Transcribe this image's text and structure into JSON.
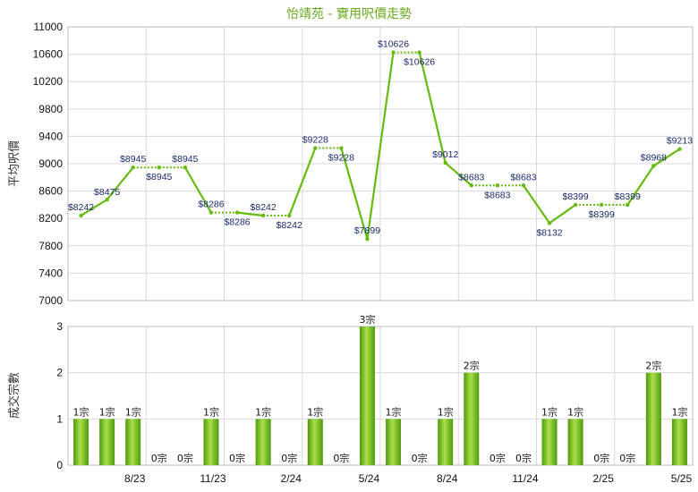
{
  "chart_data": [
    {
      "type": "line",
      "title": "怡靖苑 - 實用呎價走勢",
      "ylabel": "平均呎價",
      "ylim": [
        7000,
        11000
      ],
      "yticks": [
        7000,
        7400,
        7800,
        8200,
        8600,
        9000,
        9400,
        9800,
        10200,
        10600,
        11000
      ],
      "grid": true,
      "line_color": "#66bb11",
      "series": [
        {
          "values": [
            8242,
            8475,
            8945,
            8945,
            8945,
            8286,
            8286,
            8242,
            8242,
            9228,
            9228,
            7899,
            10626,
            10626,
            9012,
            8683,
            8683,
            8683,
            8132,
            8399,
            8399,
            8399,
            8968,
            9213
          ],
          "labels": [
            "$8242",
            "$8475",
            "$8945",
            "$8945",
            "$8945",
            "$8286",
            "$8286",
            "$8242",
            "$8242",
            "$9228",
            "$9228",
            "$7899",
            "$10626",
            "$10626",
            "$9012",
            "$8683",
            "$8683",
            "$8683",
            "$8132",
            "$8399",
            "$8399",
            "$8399",
            "$8968",
            "$9213"
          ],
          "dotted_segments": [
            2,
            3,
            5,
            7,
            9,
            12,
            15,
            16,
            19,
            20
          ]
        }
      ]
    },
    {
      "type": "bar",
      "ylabel": "成交宗數",
      "ylim": [
        0,
        3
      ],
      "yticks": [
        0,
        1,
        2,
        3
      ],
      "grid": true,
      "bar_color": "#7cc21f",
      "values": [
        1,
        1,
        1,
        0,
        0,
        1,
        0,
        1,
        0,
        1,
        0,
        3,
        1,
        0,
        1,
        2,
        0,
        0,
        1,
        1,
        0,
        0,
        2,
        1
      ],
      "labels": [
        "1宗",
        "1宗",
        "1宗",
        "0宗",
        "0宗",
        "1宗",
        "0宗",
        "1宗",
        "0宗",
        "1宗",
        "0宗",
        "3宗",
        "1宗",
        "0宗",
        "1宗",
        "2宗",
        "0宗",
        "0宗",
        "1宗",
        "1宗",
        "0宗",
        "0宗",
        "2宗",
        "1宗"
      ],
      "x_ticks": [
        {
          "index": 2,
          "label": "8/23"
        },
        {
          "index": 5,
          "label": "11/23"
        },
        {
          "index": 8,
          "label": "2/24"
        },
        {
          "index": 11,
          "label": "5/24"
        },
        {
          "index": 14,
          "label": "8/24"
        },
        {
          "index": 17,
          "label": "11/24"
        },
        {
          "index": 20,
          "label": "2/25"
        },
        {
          "index": 23,
          "label": "5/25"
        }
      ]
    }
  ]
}
